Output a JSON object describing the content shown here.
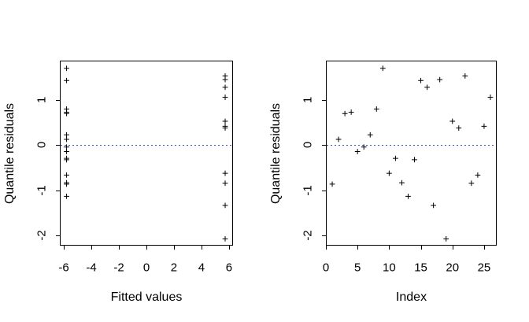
{
  "figure": {
    "background": "#ffffff",
    "marker_color": "#000000",
    "axis_color": "#000000",
    "zero_line_color": "#3550c8"
  },
  "chart_data": [
    {
      "type": "scatter",
      "title": "",
      "xlabel": "Fitted values",
      "ylabel": "Quantile residuals",
      "marker": "plus",
      "xlim": [
        -6.29,
        6.29
      ],
      "ylim": [
        -2.22,
        1.87
      ],
      "xticks": [
        -6,
        -4,
        -2,
        0,
        2,
        4,
        6
      ],
      "yticks": [
        1,
        0,
        -1,
        -2
      ],
      "grid": false,
      "zero_line": {
        "y": 0,
        "style": "dotted",
        "color": "#3550c8"
      },
      "points": [
        {
          "x": -5.8,
          "y": 1.7
        },
        {
          "x": -5.8,
          "y": 1.43
        },
        {
          "x": -5.8,
          "y": 0.8
        },
        {
          "x": -5.8,
          "y": 0.73
        },
        {
          "x": -5.8,
          "y": 0.7
        },
        {
          "x": -5.8,
          "y": 0.23
        },
        {
          "x": -5.8,
          "y": 0.13
        },
        {
          "x": -5.8,
          "y": -0.04
        },
        {
          "x": -5.8,
          "y": -0.14
        },
        {
          "x": -5.8,
          "y": -0.29
        },
        {
          "x": -5.8,
          "y": -0.32
        },
        {
          "x": -5.8,
          "y": -0.66
        },
        {
          "x": -5.8,
          "y": -0.83
        },
        {
          "x": -5.8,
          "y": -0.86
        },
        {
          "x": -5.8,
          "y": -1.13
        },
        {
          "x": 5.72,
          "y": 1.53
        },
        {
          "x": 5.72,
          "y": 1.45
        },
        {
          "x": 5.72,
          "y": 1.28
        },
        {
          "x": 5.72,
          "y": 1.06
        },
        {
          "x": 5.72,
          "y": 0.53
        },
        {
          "x": 5.72,
          "y": 0.42
        },
        {
          "x": 5.72,
          "y": 0.38
        },
        {
          "x": 5.72,
          "y": -0.62
        },
        {
          "x": 5.72,
          "y": -0.84
        },
        {
          "x": 5.72,
          "y": -1.33
        },
        {
          "x": 5.72,
          "y": -2.07
        }
      ]
    },
    {
      "type": "scatter",
      "title": "",
      "xlabel": "Index",
      "ylabel": "Quantile residuals",
      "marker": "plus",
      "xlim": [
        0,
        27
      ],
      "ylim": [
        -2.22,
        1.87
      ],
      "xticks": [
        0,
        5,
        10,
        15,
        20,
        25
      ],
      "yticks": [
        1,
        0,
        -1,
        -2
      ],
      "grid": false,
      "zero_line": {
        "y": 0,
        "style": "dotted",
        "color": "#3550c8"
      },
      "points": [
        {
          "x": 1,
          "y": -0.86
        },
        {
          "x": 2,
          "y": 0.13
        },
        {
          "x": 3,
          "y": 0.7
        },
        {
          "x": 4,
          "y": 0.73
        },
        {
          "x": 5,
          "y": -0.14
        },
        {
          "x": 6,
          "y": -0.04
        },
        {
          "x": 7,
          "y": 0.23
        },
        {
          "x": 8,
          "y": 0.8
        },
        {
          "x": 9,
          "y": 1.7
        },
        {
          "x": 10,
          "y": -0.62
        },
        {
          "x": 11,
          "y": -0.29
        },
        {
          "x": 12,
          "y": -0.83
        },
        {
          "x": 13,
          "y": -1.13
        },
        {
          "x": 14,
          "y": -0.32
        },
        {
          "x": 15,
          "y": 1.43
        },
        {
          "x": 16,
          "y": 1.28
        },
        {
          "x": 17,
          "y": -1.33
        },
        {
          "x": 18,
          "y": 1.45
        },
        {
          "x": 19,
          "y": -2.07
        },
        {
          "x": 20,
          "y": 0.53
        },
        {
          "x": 21,
          "y": 0.38
        },
        {
          "x": 22,
          "y": 1.53
        },
        {
          "x": 23,
          "y": -0.84
        },
        {
          "x": 24,
          "y": -0.66
        },
        {
          "x": 25,
          "y": 0.42
        },
        {
          "x": 26,
          "y": 1.06
        }
      ]
    }
  ]
}
